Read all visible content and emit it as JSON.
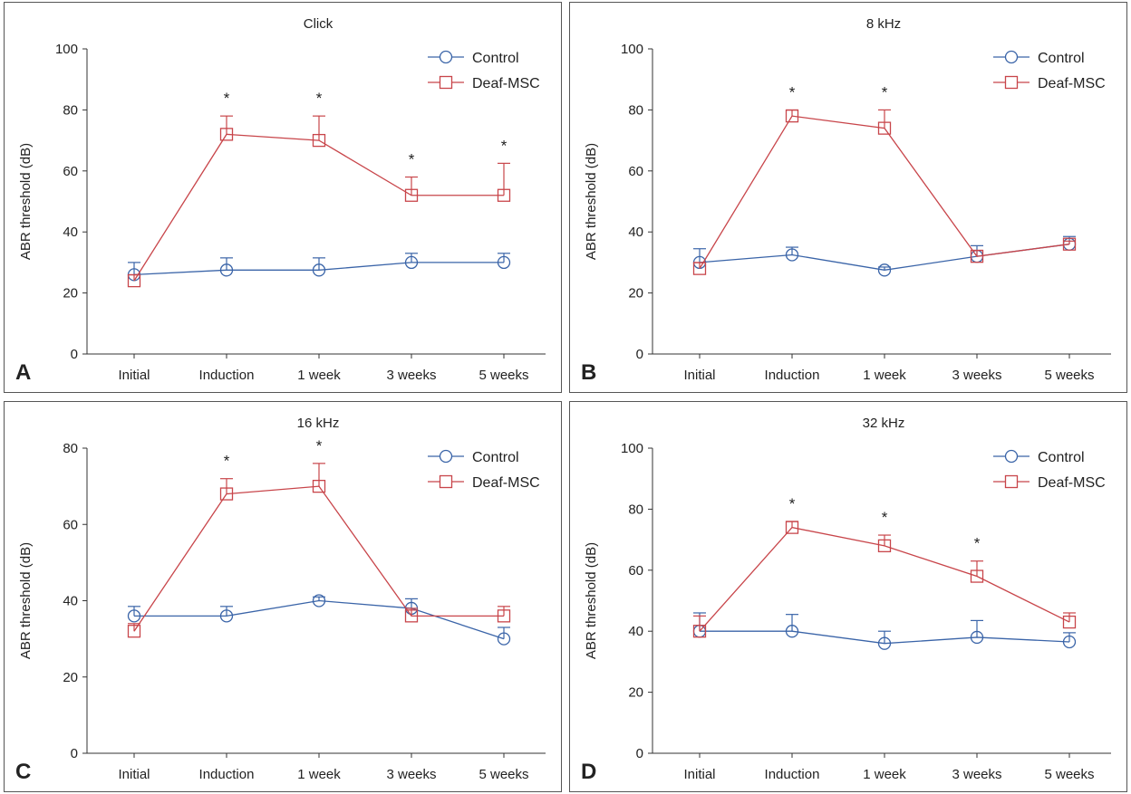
{
  "colors": {
    "control": "#3a64a8",
    "deaf_msc": "#c8454a",
    "axis": "#333333"
  },
  "chart_data": [
    {
      "type": "line",
      "letter": "A",
      "title": "Click",
      "xlabel": "",
      "ylabel": "ABR threshold (dB)",
      "categories": [
        "Initial",
        "Induction",
        "1 week",
        "3 weeks",
        "5 weeks"
      ],
      "ylim": [
        0,
        100
      ],
      "yticks": [
        0,
        20,
        40,
        60,
        80,
        100
      ],
      "legend": "top-right",
      "series": [
        {
          "name": "Control",
          "marker": "circle",
          "values": [
            26,
            27.5,
            27.5,
            30,
            30
          ],
          "err": [
            4,
            4,
            4,
            3,
            3
          ]
        },
        {
          "name": "Deaf-MSC",
          "marker": "square",
          "values": [
            24,
            72,
            70,
            52,
            52
          ],
          "err": [
            2,
            6,
            8,
            6,
            10.5
          ]
        }
      ],
      "significance": [
        "",
        "*",
        "*",
        "*",
        "*"
      ]
    },
    {
      "type": "line",
      "letter": "B",
      "title": "8 kHz",
      "xlabel": "",
      "ylabel": "ABR threshold (dB)",
      "categories": [
        "Initial",
        "Induction",
        "1 week",
        "3 weeks",
        "5 weeks"
      ],
      "ylim": [
        0,
        100
      ],
      "yticks": [
        0,
        20,
        40,
        60,
        80,
        100
      ],
      "legend": "top-right",
      "series": [
        {
          "name": "Control",
          "marker": "circle",
          "values": [
            30,
            32.5,
            27.5,
            32,
            36
          ],
          "err": [
            4.5,
            2.5,
            1,
            3.5,
            2.5
          ]
        },
        {
          "name": "Deaf-MSC",
          "marker": "square",
          "values": [
            28,
            78,
            74,
            32,
            36
          ],
          "err": [
            2,
            2,
            6,
            2,
            1
          ]
        }
      ],
      "significance": [
        "",
        "*",
        "*",
        "",
        ""
      ]
    },
    {
      "type": "line",
      "letter": "C",
      "title": "16 kHz",
      "xlabel": "",
      "ylabel": "ABR threshold (dB)",
      "categories": [
        "Initial",
        "Induction",
        "1 week",
        "3 weeks",
        "5 weeks"
      ],
      "ylim": [
        0,
        80
      ],
      "yticks": [
        0,
        20,
        40,
        60,
        80
      ],
      "legend": "top-right",
      "series": [
        {
          "name": "Control",
          "marker": "circle",
          "values": [
            36,
            36,
            40,
            38,
            30
          ],
          "err": [
            2.5,
            2.5,
            1,
            2.5,
            3
          ]
        },
        {
          "name": "Deaf-MSC",
          "marker": "square",
          "values": [
            32,
            68,
            70,
            36,
            36
          ],
          "err": [
            2,
            4,
            6,
            2,
            2.5
          ]
        }
      ],
      "significance": [
        "",
        "*",
        "*",
        "",
        ""
      ]
    },
    {
      "type": "line",
      "letter": "D",
      "title": "32 kHz",
      "xlabel": "",
      "ylabel": "ABR threshold (dB)",
      "categories": [
        "Initial",
        "Induction",
        "1 week",
        "3 weeks",
        "5 weeks"
      ],
      "ylim": [
        0,
        100
      ],
      "yticks": [
        0,
        20,
        40,
        60,
        80,
        100
      ],
      "legend": "top-right",
      "series": [
        {
          "name": "Control",
          "marker": "circle",
          "values": [
            40,
            40,
            36,
            38,
            36.5
          ],
          "err": [
            6,
            5.5,
            4,
            5.5,
            3
          ]
        },
        {
          "name": "Deaf-MSC",
          "marker": "square",
          "values": [
            40,
            74,
            68,
            58,
            43
          ],
          "err": [
            5,
            2,
            3.5,
            5,
            3
          ]
        }
      ],
      "significance": [
        "",
        "*",
        "*",
        "*",
        ""
      ]
    }
  ]
}
